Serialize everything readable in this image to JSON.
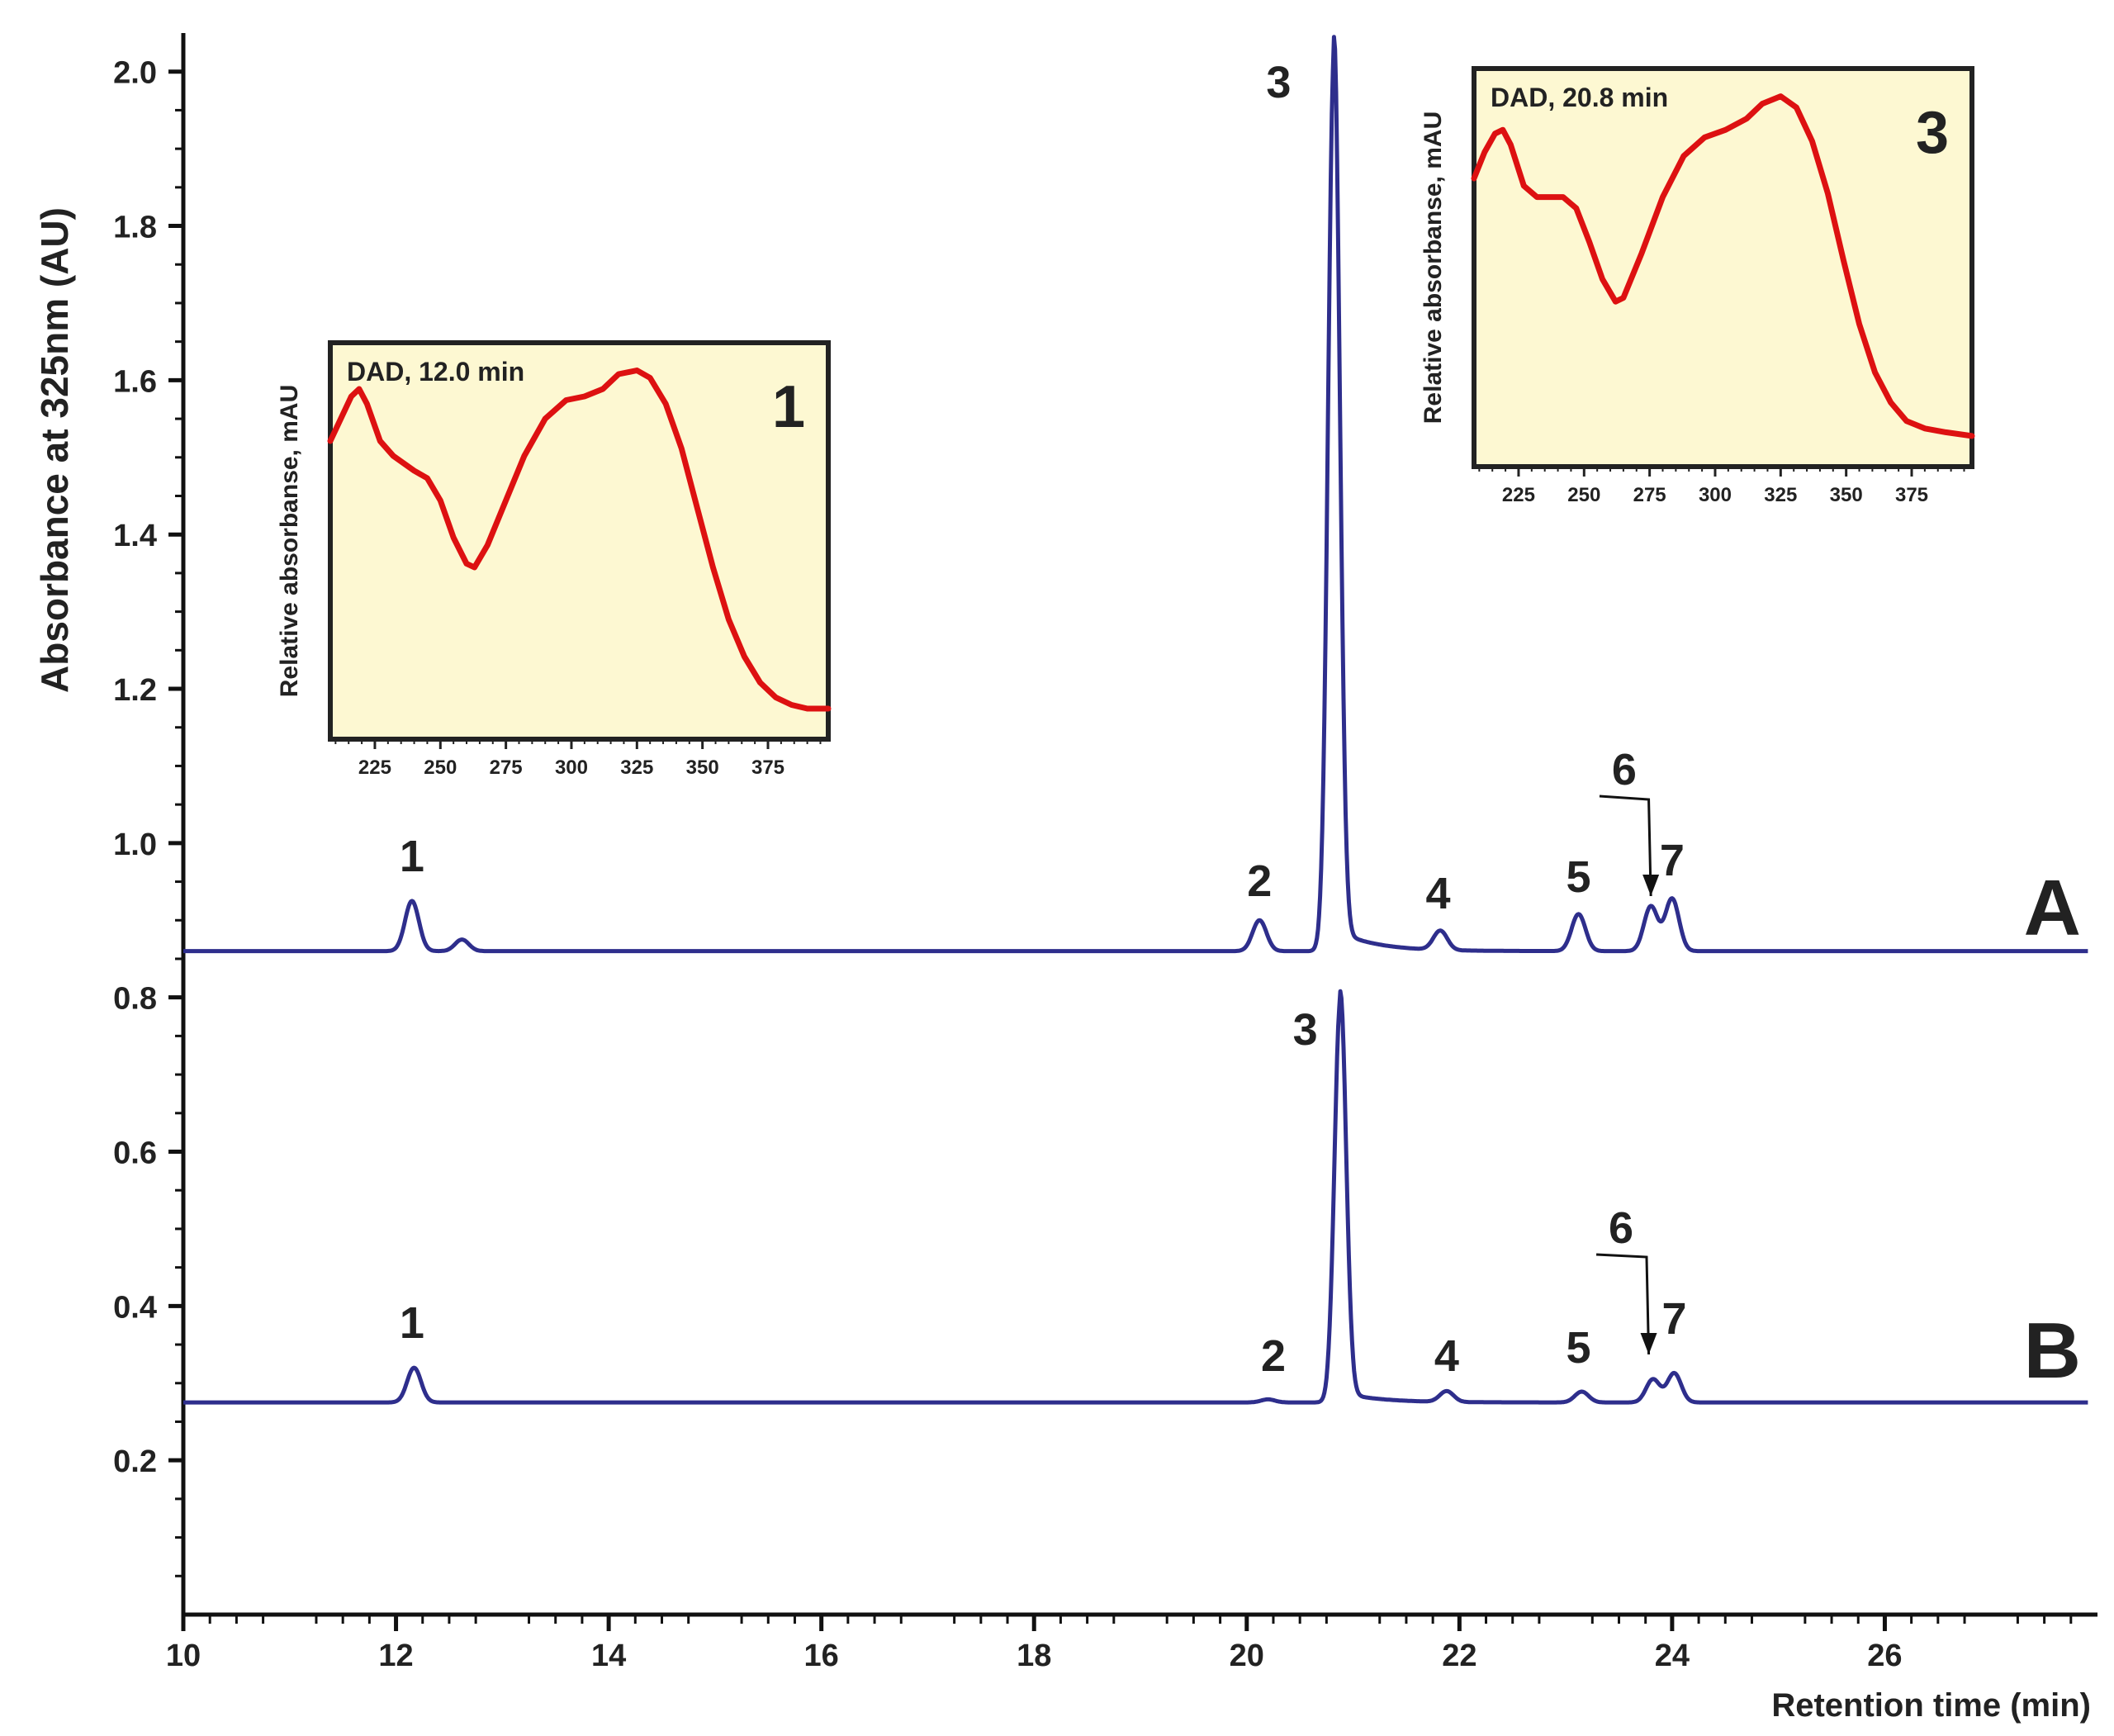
{
  "chart_data": {
    "type": "line",
    "title": "",
    "xlabel": "Retention time (min)",
    "ylabel": "Absorbance at 325nm (AU)",
    "xlim": [
      10,
      28
    ],
    "ylim": [
      0,
      2.05
    ],
    "x_ticks": [
      "10",
      "12",
      "14",
      "16",
      "18",
      "20",
      "22",
      "24",
      "26"
    ],
    "y_ticks": [
      "0.2",
      "0.4",
      "0.6",
      "0.8",
      "1.0",
      "1.2",
      "1.4",
      "1.6",
      "1.8",
      "2.0"
    ],
    "grid": false,
    "line_color": "#2e2e8c",
    "series": [
      {
        "name": "A",
        "baseline": 0.86,
        "peaks": [
          {
            "label": "1",
            "x": 12.15,
            "height": 0.065
          },
          {
            "label": "",
            "x": 12.62,
            "height": 0.015
          },
          {
            "label": "2",
            "x": 20.12,
            "height": 0.04
          },
          {
            "label": "3",
            "x": 20.82,
            "height": 1.16
          },
          {
            "label": "4",
            "x": 21.82,
            "height": 0.025
          },
          {
            "label": "5",
            "x": 23.12,
            "height": 0.048
          },
          {
            "label": "6",
            "x": 23.8,
            "height": 0.058
          },
          {
            "label": "7",
            "x": 24.0,
            "height": 0.068
          }
        ]
      },
      {
        "name": "B",
        "baseline": 0.275,
        "peaks": [
          {
            "label": "1",
            "x": 12.17,
            "height": 0.045
          },
          {
            "label": "2",
            "x": 20.2,
            "height": 0.004
          },
          {
            "label": "3",
            "x": 20.88,
            "height": 0.52
          },
          {
            "label": "4",
            "x": 21.88,
            "height": 0.014
          },
          {
            "label": "5",
            "x": 23.15,
            "height": 0.014
          },
          {
            "label": "6",
            "x": 23.82,
            "height": 0.03
          },
          {
            "label": "7",
            "x": 24.02,
            "height": 0.038
          }
        ]
      }
    ],
    "insets": [
      {
        "title": "DAD, 12.0 min",
        "peak_number": "1",
        "ylabel": "Relative absorbanse, mAU",
        "x_ticks": [
          "225",
          "250",
          "275",
          "300",
          "325",
          "350",
          "375"
        ],
        "xlim": [
          208,
          398
        ],
        "line_color": "#dd1111",
        "background": "#fdf8d2",
        "spectrum": [
          [
            208,
            0.78
          ],
          [
            212,
            0.84
          ],
          [
            216,
            0.9
          ],
          [
            219,
            0.92
          ],
          [
            222,
            0.88
          ],
          [
            227,
            0.78
          ],
          [
            232,
            0.74
          ],
          [
            236,
            0.72
          ],
          [
            240,
            0.7
          ],
          [
            245,
            0.68
          ],
          [
            250,
            0.62
          ],
          [
            255,
            0.52
          ],
          [
            260,
            0.45
          ],
          [
            263,
            0.44
          ],
          [
            268,
            0.5
          ],
          [
            275,
            0.62
          ],
          [
            282,
            0.74
          ],
          [
            290,
            0.84
          ],
          [
            298,
            0.89
          ],
          [
            305,
            0.9
          ],
          [
            312,
            0.92
          ],
          [
            318,
            0.96
          ],
          [
            325,
            0.97
          ],
          [
            330,
            0.95
          ],
          [
            336,
            0.88
          ],
          [
            342,
            0.76
          ],
          [
            348,
            0.6
          ],
          [
            354,
            0.44
          ],
          [
            360,
            0.3
          ],
          [
            366,
            0.2
          ],
          [
            372,
            0.13
          ],
          [
            378,
            0.09
          ],
          [
            384,
            0.07
          ],
          [
            390,
            0.06
          ],
          [
            398,
            0.06
          ]
        ]
      },
      {
        "title": "DAD, 20.8 min",
        "peak_number": "3",
        "ylabel": "Relative absorbanse, mAU",
        "x_ticks": [
          "225",
          "250",
          "275",
          "300",
          "325",
          "350",
          "375"
        ],
        "xlim": [
          208,
          398
        ],
        "line_color": "#dd1111",
        "background": "#fdf8d2",
        "spectrum": [
          [
            208,
            0.75
          ],
          [
            212,
            0.82
          ],
          [
            216,
            0.87
          ],
          [
            219,
            0.88
          ],
          [
            222,
            0.84
          ],
          [
            227,
            0.73
          ],
          [
            232,
            0.7
          ],
          [
            237,
            0.7
          ],
          [
            242,
            0.7
          ],
          [
            247,
            0.67
          ],
          [
            252,
            0.58
          ],
          [
            257,
            0.48
          ],
          [
            262,
            0.42
          ],
          [
            265,
            0.43
          ],
          [
            272,
            0.55
          ],
          [
            280,
            0.7
          ],
          [
            288,
            0.81
          ],
          [
            296,
            0.86
          ],
          [
            304,
            0.88
          ],
          [
            312,
            0.91
          ],
          [
            318,
            0.95
          ],
          [
            325,
            0.97
          ],
          [
            331,
            0.94
          ],
          [
            337,
            0.85
          ],
          [
            343,
            0.71
          ],
          [
            349,
            0.53
          ],
          [
            355,
            0.36
          ],
          [
            361,
            0.23
          ],
          [
            367,
            0.15
          ],
          [
            373,
            0.1
          ],
          [
            380,
            0.08
          ],
          [
            388,
            0.07
          ],
          [
            398,
            0.06
          ]
        ]
      }
    ]
  }
}
